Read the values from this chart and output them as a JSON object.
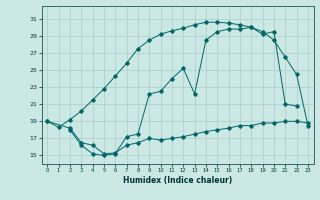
{
  "xlabel": "Humidex (Indice chaleur)",
  "bg_color": "#cce8e4",
  "grid_color": "#aacfcb",
  "line_color": "#006666",
  "xlim": [
    -0.5,
    23.5
  ],
  "ylim": [
    14.0,
    32.5
  ],
  "yticks": [
    15,
    17,
    19,
    21,
    23,
    25,
    27,
    29,
    31
  ],
  "xticks": [
    0,
    1,
    2,
    3,
    4,
    5,
    6,
    7,
    8,
    9,
    10,
    11,
    12,
    13,
    14,
    15,
    16,
    17,
    18,
    19,
    20,
    21,
    22,
    23
  ],
  "line1_x": [
    0,
    1,
    2,
    3,
    4,
    5,
    6,
    7,
    8,
    9,
    10,
    11,
    12,
    13,
    14,
    15,
    16,
    17,
    18,
    19,
    20,
    21,
    22,
    23
  ],
  "line1_y": [
    19.0,
    18.3,
    19.2,
    20.2,
    21.5,
    22.8,
    24.3,
    25.8,
    27.5,
    28.5,
    29.2,
    29.6,
    29.9,
    30.3,
    30.6,
    30.6,
    30.5,
    30.3,
    30.0,
    29.5,
    28.5,
    26.5,
    24.5,
    18.5
  ],
  "line2_x": [
    2,
    3,
    4,
    5,
    6,
    7,
    8,
    9,
    10,
    11,
    12,
    13,
    14,
    15,
    16,
    17,
    18,
    19,
    20,
    21,
    22
  ],
  "line2_y": [
    18.0,
    16.2,
    15.2,
    15.0,
    15.2,
    17.2,
    17.5,
    22.2,
    22.5,
    24.0,
    25.2,
    22.2,
    28.5,
    29.5,
    29.8,
    29.8,
    30.0,
    29.2,
    29.5,
    21.0,
    20.8
  ],
  "line3_x": [
    0,
    2,
    3,
    4,
    5,
    6,
    7,
    8,
    9,
    10,
    11,
    12,
    13,
    14,
    15,
    16,
    17,
    18,
    19,
    20,
    21,
    22,
    23
  ],
  "line3_y": [
    19.0,
    18.2,
    16.5,
    16.2,
    15.2,
    15.3,
    16.2,
    16.5,
    17.0,
    16.8,
    17.0,
    17.2,
    17.5,
    17.8,
    18.0,
    18.2,
    18.5,
    18.5,
    18.8,
    18.8,
    19.0,
    19.0,
    18.8
  ]
}
